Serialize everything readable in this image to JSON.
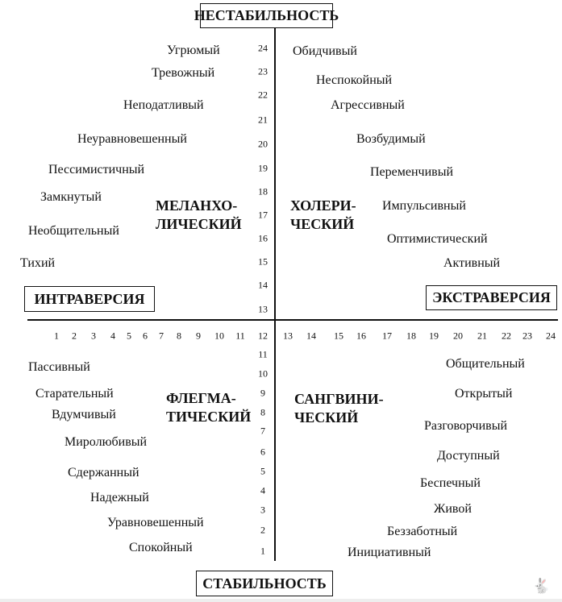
{
  "axes": {
    "top": "НЕСТАБИЛЬНОСТЬ",
    "bottom": "СТАБИЛЬНОСТЬ",
    "left": "ИНТРАВЕРСИЯ",
    "right": "ЭКСТРАВЕРСИЯ"
  },
  "quadrants": {
    "top_left": [
      "МЕЛАНХО-",
      "ЛИЧЕСКИЙ"
    ],
    "top_right": [
      "ХОЛЕРИ-",
      "ЧЕСКИЙ"
    ],
    "bottom_left": [
      "ФЛЕГМА-",
      "ТИЧЕСКИЙ"
    ],
    "bottom_right": [
      "САНГВИНИ-",
      "ЧЕСКИЙ"
    ]
  },
  "traits": {
    "top_left": [
      "Угрюмый",
      "Тревожный",
      "Неподатливый",
      "Неуравновешенный",
      "Пессимистичный",
      "Замкнутый",
      "Необщительный",
      "Тихий"
    ],
    "top_right": [
      "Обидчивый",
      "Неспокойный",
      "Агрессивный",
      "Возбудимый",
      "Переменчивый",
      "Импульсивный",
      "Оптимистический",
      "Активный"
    ],
    "bottom_left": [
      "Пассивный",
      "Старательный",
      "Вдумчивый",
      "Миролюбивый",
      "Сдержанный",
      "Надежный",
      "Уравновешенный",
      "Спокойный"
    ],
    "bottom_right": [
      "Общительный",
      "Открытый",
      "Разговорчивый",
      "Доступный",
      "Беспечный",
      "Живой",
      "Беззаботный",
      "Инициативный"
    ]
  },
  "vertical_scale_top": [
    "24",
    "23",
    "22",
    "21",
    "20",
    "19",
    "18",
    "17",
    "16",
    "15",
    "14",
    "13"
  ],
  "vertical_scale_bottom": [
    "11",
    "10",
    "9",
    "8",
    "7",
    "6",
    "5",
    "4",
    "3",
    "2",
    "1"
  ],
  "horizontal_scale": [
    "1",
    "2",
    "3",
    "4",
    "5",
    "6",
    "7",
    "8",
    "9",
    "10",
    "11",
    "12",
    "13",
    "14",
    "15",
    "16",
    "17",
    "18",
    "19",
    "20",
    "21",
    "22",
    "23",
    "24"
  ],
  "watermark_icon": "rabbit-icon"
}
